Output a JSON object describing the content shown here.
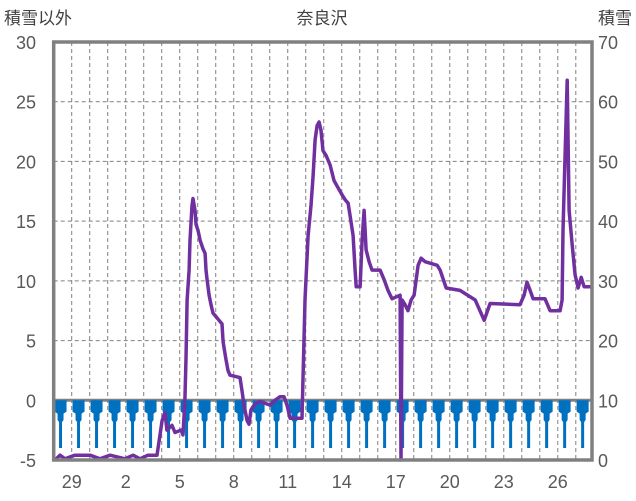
{
  "chart_data": {
    "type": "line",
    "title": "奈良沢",
    "ylabel_left": "積雪以外",
    "ylabel_right": "積雪",
    "ylim_left": [
      -5,
      30
    ],
    "ylim_right": [
      0,
      70
    ],
    "yticks_left": [
      "30",
      "25",
      "20",
      "15",
      "10",
      "5",
      "0",
      "-5"
    ],
    "yticks_right": [
      "70",
      "60",
      "50",
      "40",
      "30",
      "20",
      "10",
      "0"
    ],
    "xlim_days": [
      0,
      29.9
    ],
    "xticks": [
      {
        "label": "29",
        "day": 1.5
      },
      {
        "label": "2",
        "day": 4.5
      },
      {
        "label": "5",
        "day": 7.5
      },
      {
        "label": "8",
        "day": 10.5
      },
      {
        "label": "11",
        "day": 13.5
      },
      {
        "label": "14",
        "day": 16.5
      },
      {
        "label": "17",
        "day": 19.5
      },
      {
        "label": "20",
        "day": 22.5
      },
      {
        "label": "23",
        "day": 25.5
      },
      {
        "label": "26",
        "day": 28.5
      }
    ],
    "grid": true,
    "colors": {
      "line": "#7030A0",
      "bars": "#0070C0",
      "axis": "#808080",
      "grid": "#808080"
    },
    "series": [
      {
        "name": "積雪以外",
        "axis": "left",
        "points": [
          [
            0.07,
            -5
          ],
          [
            0.35,
            -4.6
          ],
          [
            0.63,
            -4.9
          ],
          [
            1.18,
            -4.6
          ],
          [
            2.02,
            -4.6
          ],
          [
            2.57,
            -4.9
          ],
          [
            3.13,
            -4.6
          ],
          [
            3.96,
            -4.9
          ],
          [
            4.41,
            -4.6
          ],
          [
            4.79,
            -4.9
          ],
          [
            5.24,
            -4.6
          ],
          [
            5.74,
            -4.6
          ],
          [
            6.02,
            -1.7
          ],
          [
            6.18,
            -1.0
          ],
          [
            6.29,
            -2.5
          ],
          [
            6.57,
            -2.1
          ],
          [
            6.74,
            -2.7
          ],
          [
            7.07,
            -2.5
          ],
          [
            7.18,
            -2.9
          ],
          [
            7.29,
            0
          ],
          [
            7.35,
            3.5
          ],
          [
            7.41,
            8.4
          ],
          [
            7.52,
            10.9
          ],
          [
            7.57,
            13.4
          ],
          [
            7.68,
            16.3
          ],
          [
            7.74,
            16.9
          ],
          [
            7.85,
            15.9
          ],
          [
            7.91,
            14.7
          ],
          [
            8.02,
            14.2
          ],
          [
            8.13,
            13.4
          ],
          [
            8.29,
            12.7
          ],
          [
            8.41,
            12.3
          ],
          [
            8.46,
            10.9
          ],
          [
            8.52,
            10.1
          ],
          [
            8.63,
            8.8
          ],
          [
            8.74,
            8.0
          ],
          [
            8.85,
            7.3
          ],
          [
            9.02,
            7.0
          ],
          [
            9.18,
            6.7
          ],
          [
            9.35,
            6.4
          ],
          [
            9.41,
            4.9
          ],
          [
            9.57,
            3.4
          ],
          [
            9.68,
            2.5
          ],
          [
            9.79,
            2.1
          ],
          [
            10.35,
            1.9
          ],
          [
            10.46,
            0.8
          ],
          [
            10.57,
            -0.4
          ],
          [
            10.74,
            -1.7
          ],
          [
            10.85,
            -2.0
          ],
          [
            10.96,
            -0.8
          ],
          [
            11.18,
            -0.3
          ],
          [
            11.46,
            -0.1
          ],
          [
            12.02,
            -0.4
          ],
          [
            12.29,
            0
          ],
          [
            12.57,
            0.3
          ],
          [
            12.79,
            0.3
          ],
          [
            12.96,
            -0.4
          ],
          [
            13.13,
            -1.5
          ],
          [
            13.79,
            -1.5
          ],
          [
            13.96,
            8.4
          ],
          [
            14.13,
            13.8
          ],
          [
            14.29,
            16.3
          ],
          [
            14.41,
            18.8
          ],
          [
            14.52,
            21.8
          ],
          [
            14.63,
            23.0
          ],
          [
            14.74,
            23.3
          ],
          [
            14.85,
            22.6
          ],
          [
            14.96,
            20.9
          ],
          [
            15.13,
            20.5
          ],
          [
            15.35,
            19.7
          ],
          [
            15.57,
            18.4
          ],
          [
            15.79,
            17.8
          ],
          [
            16.02,
            17.2
          ],
          [
            16.18,
            16.8
          ],
          [
            16.35,
            16.5
          ],
          [
            16.46,
            15.5
          ],
          [
            16.63,
            13.8
          ],
          [
            16.74,
            10.9
          ],
          [
            16.8,
            9.5
          ],
          [
            17.02,
            9.5
          ],
          [
            17.13,
            13.4
          ],
          [
            17.24,
            15.9
          ],
          [
            17.35,
            12.6
          ],
          [
            17.52,
            11.6
          ],
          [
            17.68,
            10.9
          ],
          [
            18.13,
            10.9
          ],
          [
            18.35,
            10.1
          ],
          [
            18.57,
            9.2
          ],
          [
            18.79,
            8.5
          ],
          [
            19.24,
            8.8
          ],
          [
            19.29,
            -5
          ],
          [
            19.35,
            8.4
          ],
          [
            19.52,
            8.0
          ],
          [
            19.68,
            7.5
          ],
          [
            19.85,
            8.4
          ],
          [
            20.02,
            8.8
          ],
          [
            20.24,
            11.3
          ],
          [
            20.41,
            11.9
          ],
          [
            20.63,
            11.6
          ],
          [
            21.3,
            11.3
          ],
          [
            21.46,
            10.9
          ],
          [
            21.8,
            9.4
          ],
          [
            22.57,
            9.2
          ],
          [
            23.41,
            8.4
          ],
          [
            23.91,
            6.7
          ],
          [
            24.24,
            8.1
          ],
          [
            25.9,
            8.0
          ],
          [
            26.13,
            8.8
          ],
          [
            26.29,
            9.9
          ],
          [
            26.46,
            9.2
          ],
          [
            26.63,
            8.5
          ],
          [
            27.29,
            8.5
          ],
          [
            27.57,
            7.5
          ],
          [
            28.13,
            7.5
          ],
          [
            28.24,
            8.4
          ],
          [
            28.29,
            14.2
          ],
          [
            28.41,
            20.9
          ],
          [
            28.52,
            26.8
          ],
          [
            28.63,
            15.9
          ],
          [
            28.8,
            13.0
          ],
          [
            28.96,
            10.5
          ],
          [
            29.13,
            9.4
          ],
          [
            29.3,
            10.3
          ],
          [
            29.46,
            9.5
          ],
          [
            29.9,
            9.5
          ]
        ]
      },
      {
        "name": "積雪",
        "axis": "right",
        "type": "bar",
        "base": 10,
        "daily_center_offset": 0.38,
        "days": 30,
        "profile": [
          8.1,
          6.7,
          2.0
        ]
      }
    ]
  }
}
